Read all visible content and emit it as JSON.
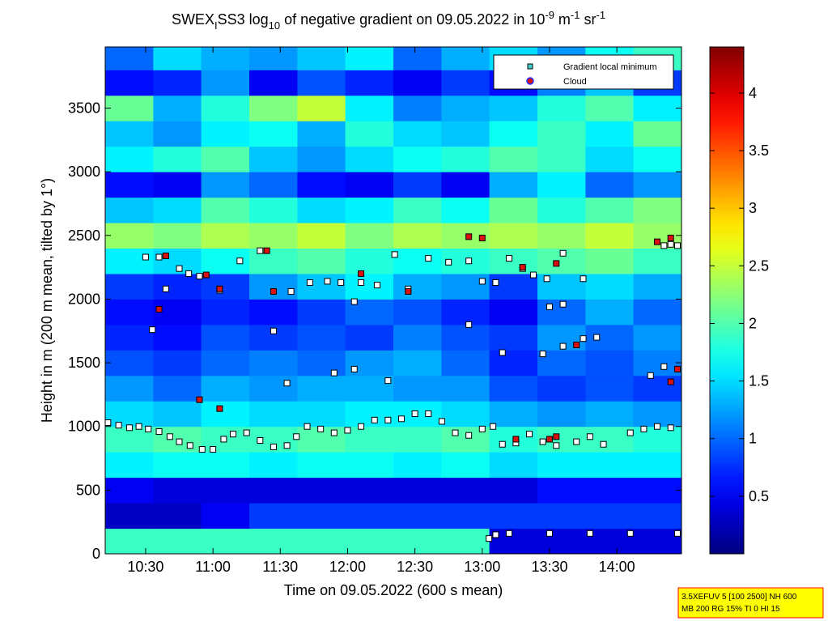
{
  "chart_data": {
    "type": "heatmap",
    "title": [
      "SWEX",
      "I",
      "SS3 log",
      "10",
      " of negative gradient on 09.05.2022 in 10",
      "-9",
      " m",
      "-1",
      " sr",
      "-1"
    ],
    "xlabel": "Time on 09.05.2022 (600 s mean)",
    "ylabel": "Height in m (200 m mean, tilted by 1°)",
    "xlim": [
      10.2,
      14.48
    ],
    "ylim": [
      0,
      3980
    ],
    "xticks": [
      {
        "value": 10.5,
        "label": "10:30"
      },
      {
        "value": 11,
        "label": "11:00"
      },
      {
        "value": 11.5,
        "label": "11:30"
      },
      {
        "value": 12,
        "label": "12:00"
      },
      {
        "value": 12.5,
        "label": "12:30"
      },
      {
        "value": 13,
        "label": "13:00"
      },
      {
        "value": 13.5,
        "label": "13:30"
      },
      {
        "value": 14,
        "label": "14:00"
      }
    ],
    "yticks": [
      0,
      500,
      1000,
      1500,
      2000,
      2500,
      3000,
      3500
    ],
    "clim": [
      0,
      4.4
    ],
    "cticks": [
      0.5,
      1,
      1.5,
      2,
      2.5,
      3,
      3.5,
      4
    ],
    "colormap": "jet",
    "x_edges": [
      10.2,
      10.557,
      10.913,
      11.27,
      11.627,
      11.983,
      12.34,
      12.697,
      13.053,
      13.41,
      13.767,
      14.123,
      14.48
    ],
    "y_edges": [
      0,
      200,
      400,
      600,
      800,
      1000,
      1200,
      1400,
      1600,
      1800,
      2000,
      2200,
      2400,
      2600,
      2800,
      3000,
      3200,
      3400,
      3600,
      3800,
      4000
    ],
    "z": [
      [
        1.9,
        1.9,
        1.9,
        1.9,
        1.9,
        1.9,
        1.9,
        1.9,
        0.4,
        0.4,
        0.4,
        0.4
      ],
      [
        0.3,
        0.3,
        0.5,
        0.8,
        0.8,
        0.8,
        0.8,
        0.8,
        0.8,
        0.8,
        0.8,
        0.8
      ],
      [
        0.5,
        0.4,
        0.4,
        0.4,
        0.4,
        0.4,
        0.4,
        0.4,
        0.4,
        0.6,
        0.6,
        0.6
      ],
      [
        1.6,
        1.7,
        1.7,
        1.6,
        1.7,
        1.7,
        1.6,
        1.7,
        1.5,
        1.6,
        1.6,
        1.6
      ],
      [
        1.9,
        2.0,
        1.9,
        1.9,
        2.0,
        1.9,
        1.9,
        2.0,
        1.8,
        1.9,
        1.9,
        1.8
      ],
      [
        1.5,
        1.4,
        1.6,
        1.5,
        1.5,
        1.6,
        1.6,
        1.5,
        1.3,
        1.2,
        1.3,
        1.2
      ],
      [
        1.2,
        1.0,
        1.3,
        1.2,
        1.3,
        1.3,
        1.2,
        1.2,
        0.9,
        0.8,
        0.9,
        0.8
      ],
      [
        0.9,
        0.8,
        1.0,
        1.1,
        1.0,
        1.2,
        1.3,
        1.0,
        0.7,
        1.0,
        0.9,
        1.1
      ],
      [
        0.7,
        0.6,
        0.9,
        0.8,
        0.9,
        0.8,
        1.1,
        0.9,
        0.8,
        1.2,
        1.0,
        1.2
      ],
      [
        0.6,
        0.5,
        0.7,
        0.6,
        0.8,
        1.0,
        0.9,
        0.7,
        0.5,
        1.0,
        1.3,
        1.0
      ],
      [
        0.8,
        0.7,
        0.8,
        1.2,
        1.4,
        1.6,
        1.3,
        1.2,
        0.8,
        1.4,
        1.5,
        1.3
      ],
      [
        1.6,
        1.5,
        1.7,
        1.9,
        2.0,
        1.8,
        1.7,
        1.8,
        1.9,
        2.0,
        2.1,
        1.9
      ],
      [
        2.3,
        2.2,
        2.4,
        2.3,
        2.5,
        2.2,
        2.4,
        2.3,
        2.4,
        2.3,
        2.5,
        2.3
      ],
      [
        1.4,
        1.5,
        2.0,
        1.8,
        1.5,
        1.6,
        1.9,
        1.7,
        2.1,
        1.8,
        2.0,
        2.2
      ],
      [
        0.6,
        0.5,
        1.2,
        1.0,
        0.6,
        0.5,
        0.8,
        0.5,
        1.3,
        1.6,
        1.0,
        1.2
      ],
      [
        1.6,
        1.8,
        2.0,
        1.4,
        1.2,
        1.5,
        1.7,
        1.8,
        2.0,
        1.9,
        1.5,
        1.7
      ],
      [
        1.4,
        1.2,
        1.6,
        1.7,
        1.3,
        1.8,
        1.5,
        1.4,
        1.7,
        1.9,
        1.6,
        2.1
      ],
      [
        2.1,
        1.3,
        1.8,
        2.2,
        2.5,
        1.6,
        1.1,
        1.3,
        1.4,
        1.8,
        2.0,
        1.6
      ],
      [
        0.6,
        0.7,
        1.2,
        0.5,
        0.9,
        0.7,
        0.5,
        0.8,
        0.6,
        1.1,
        1.4,
        0.8
      ],
      [
        1.0,
        1.5,
        1.3,
        1.2,
        1.4,
        1.6,
        1.0,
        1.3,
        1.5,
        1.2,
        1.7,
        1.9
      ]
    ],
    "series": [
      {
        "name": "Gradient local minimum",
        "color": "#ffffff",
        "legend_color": "#40d0d0",
        "marker": "square",
        "x": [
          10.22,
          10.3,
          10.38,
          10.45,
          10.52,
          10.6,
          10.68,
          10.75,
          10.83,
          10.92,
          11.0,
          11.08,
          11.15,
          11.25,
          11.35,
          11.45,
          11.55,
          11.62,
          11.7,
          11.8,
          11.9,
          12.0,
          12.1,
          12.2,
          12.3,
          12.4,
          12.5,
          12.6,
          12.7,
          12.8,
          12.9,
          13.0,
          13.08,
          13.15,
          13.25,
          13.35,
          13.45,
          13.55,
          13.7,
          13.8,
          13.9,
          14.1,
          14.2,
          14.3,
          14.4,
          10.5,
          10.6,
          10.75,
          10.82,
          10.9,
          11.05,
          11.2,
          11.35,
          11.72,
          11.85,
          11.95,
          12.1,
          12.22,
          12.35,
          12.45,
          12.6,
          12.75,
          12.9,
          13.0,
          13.1,
          13.2,
          13.3,
          13.38,
          13.48,
          13.6,
          13.75,
          14.35,
          14.4,
          14.45,
          10.65,
          11.58,
          12.05,
          10.55,
          11.45,
          11.9,
          12.05,
          12.3,
          11.55,
          12.9,
          13.15,
          13.45,
          13.6,
          13.75,
          13.85,
          14.25,
          14.35,
          13.6,
          13.5,
          13.05,
          13.1,
          13.2,
          13.5,
          13.8,
          14.1,
          14.45
        ],
        "y": [
          1030,
          1010,
          990,
          1000,
          980,
          960,
          920,
          880,
          850,
          820,
          820,
          900,
          940,
          950,
          890,
          840,
          850,
          920,
          1000,
          980,
          950,
          970,
          1000,
          1050,
          1050,
          1060,
          1100,
          1100,
          1040,
          950,
          930,
          980,
          1000,
          860,
          870,
          940,
          880,
          850,
          880,
          920,
          860,
          950,
          980,
          1000,
          990,
          2330,
          2330,
          2240,
          2200,
          2180,
          2070,
          2300,
          2380,
          2130,
          2140,
          2130,
          2130,
          2110,
          2350,
          2080,
          2320,
          2290,
          2300,
          2140,
          2130,
          2320,
          2240,
          2190,
          2160,
          2360,
          2160,
          2420,
          2430,
          2420,
          2080,
          2060,
          1980,
          1760,
          1750,
          1420,
          1450,
          1360,
          1340,
          1800,
          1580,
          1570,
          1630,
          1690,
          1700,
          1400,
          1470,
          1960,
          1940,
          120,
          150,
          160,
          160,
          160,
          160,
          160
        ]
      },
      {
        "name": "Cloud",
        "color": "#dd1010",
        "legend_color": "#dd1010",
        "marker": "circle",
        "x": [
          10.65,
          10.6,
          10.95,
          11.05,
          11.4,
          11.45,
          12.1,
          12.45,
          12.9,
          13.0,
          13.3,
          13.55,
          13.7,
          14.3,
          14.4,
          14.45,
          14.4,
          13.25,
          13.5,
          13.55,
          10.9,
          11.05
        ],
        "y": [
          2340,
          1920,
          2190,
          2080,
          2380,
          2060,
          2200,
          2060,
          2490,
          2480,
          2250,
          2280,
          1640,
          2450,
          2480,
          1450,
          1350,
          900,
          900,
          920,
          1210,
          1140
        ]
      }
    ],
    "footnote": [
      "3.5XEFUV 5 [100 2500] NH 600",
      "MB 200 RG 15% TI 0 HI 15"
    ]
  }
}
